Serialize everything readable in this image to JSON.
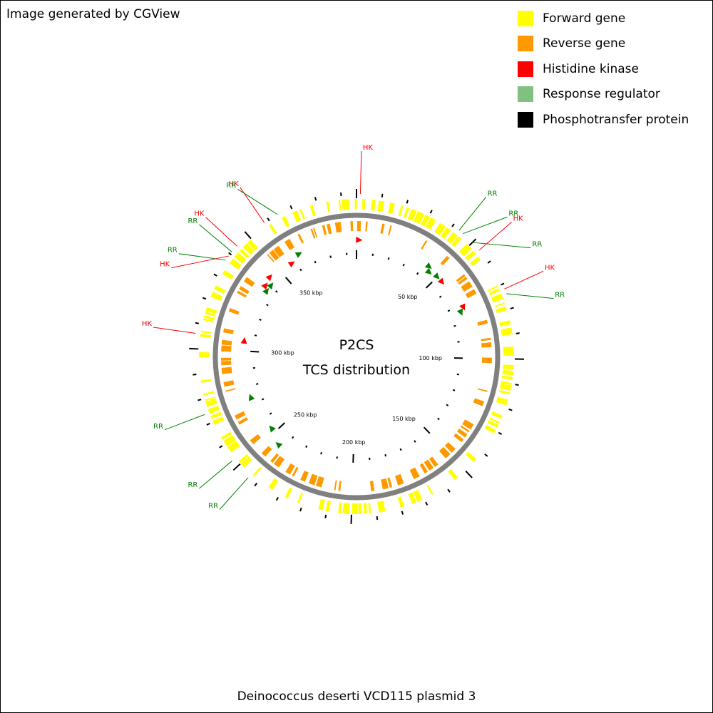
{
  "credit": "Image generated by CGView",
  "footer_title": "Deinococcus deserti VCD115 plasmid 3",
  "center_title": "P2CS",
  "center_subtitle": "TCS distribution",
  "legend": [
    {
      "label": "Forward gene",
      "color": "#ffff00"
    },
    {
      "label": "Reverse gene",
      "color": "#ff9900"
    },
    {
      "label": "Histidine kinase",
      "color": "#ff0000"
    },
    {
      "label": "Response regulator",
      "color": "#80c080"
    },
    {
      "label": "Phosphotransfer protein",
      "color": "#000000"
    }
  ],
  "colors": {
    "forward": "#ffff00",
    "reverse": "#ff9900",
    "hk": "#ff0000",
    "rr": "#008000",
    "backbone": "#808080",
    "tick": "#000000"
  },
  "map": {
    "total_kbp": 396,
    "tick_labels": [
      {
        "kbp": 50,
        "label": "50 kbp"
      },
      {
        "kbp": 100,
        "label": "100 kbp"
      },
      {
        "kbp": 150,
        "label": "150 kbp"
      },
      {
        "kbp": 200,
        "label": "200 kbp"
      },
      {
        "kbp": 250,
        "label": "250 kbp"
      },
      {
        "kbp": 300,
        "label": "300 kbp"
      },
      {
        "kbp": 350,
        "label": "350 kbp"
      }
    ],
    "features": [
      {
        "type": "HK",
        "label": "HK",
        "kbp": 1.5
      },
      {
        "type": "RR",
        "label": "RR",
        "kbp": 43
      },
      {
        "type": "RR",
        "label": "RR",
        "kbp": 45
      },
      {
        "type": "RR",
        "label": "RR",
        "kbp": 50
      },
      {
        "type": "HK",
        "label": "HK",
        "kbp": 54
      },
      {
        "type": "HK",
        "label": "HK",
        "kbp": 72
      },
      {
        "type": "RR",
        "label": "RR",
        "kbp": 74
      },
      {
        "type": "RR",
        "label": "RR",
        "kbp": 274
      },
      {
        "type": "RR",
        "label": "RR",
        "kbp": 253
      },
      {
        "type": "RR",
        "label": "RR",
        "kbp": 244
      },
      {
        "type": "HK",
        "label": "HK",
        "kbp": 306
      },
      {
        "type": "RR",
        "label": "RR",
        "kbp": 341
      },
      {
        "type": "HK",
        "label": "HK",
        "kbp": 344
      },
      {
        "type": "RR",
        "label": "RR",
        "kbp": 337
      },
      {
        "type": "HK",
        "label": "HK",
        "kbp": 339
      },
      {
        "type": "HK",
        "label": "HK",
        "kbp": 358
      },
      {
        "type": "RR",
        "label": "RR",
        "kbp": 364
      }
    ]
  }
}
